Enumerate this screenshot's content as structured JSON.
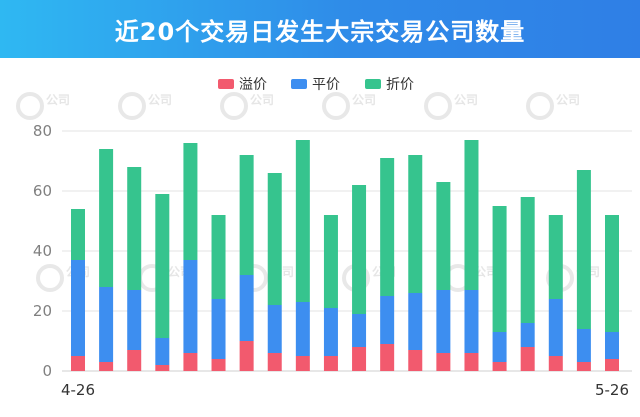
{
  "header": {
    "title": "近20个交易日发生大宗交易公司数量"
  },
  "watermark": {
    "text": "公司"
  },
  "colors": {
    "premium": "#f25a6e",
    "par": "#3d8ef0",
    "discount": "#36c48e",
    "grid": "#e3e3e3"
  },
  "chart_data": {
    "type": "bar",
    "stacked": true,
    "title": "近20个交易日发生大宗交易公司数量",
    "categories": [
      "4-26",
      "",
      "",
      "",
      "",
      "",
      "",
      "",
      "",
      "",
      "",
      "",
      "",
      "",
      "",
      "",
      "",
      "",
      "",
      "5-26"
    ],
    "x_tick_labels": [
      "4-26",
      "5-26"
    ],
    "series": [
      {
        "name": "溢价",
        "values": [
          5,
          3,
          7,
          2,
          6,
          4,
          10,
          6,
          5,
          5,
          8,
          9,
          7,
          6,
          6,
          3,
          8,
          5,
          3,
          4
        ]
      },
      {
        "name": "平价",
        "values": [
          32,
          25,
          20,
          9,
          31,
          20,
          22,
          16,
          18,
          16,
          11,
          16,
          19,
          21,
          21,
          10,
          8,
          19,
          11,
          9
        ]
      },
      {
        "name": "折价",
        "values": [
          17,
          46,
          41,
          48,
          39,
          28,
          40,
          44,
          54,
          31,
          43,
          46,
          46,
          36,
          50,
          42,
          42,
          28,
          53,
          39
        ]
      }
    ],
    "totals": [
      54,
      74,
      68,
      59,
      76,
      52,
      72,
      66,
      77,
      52,
      62,
      71,
      72,
      63,
      77,
      55,
      58,
      52,
      67,
      52
    ],
    "ylim": [
      0,
      80
    ],
    "yticks": [
      0,
      20,
      40,
      60,
      80
    ],
    "grid": true,
    "legend_position": "top-center"
  }
}
